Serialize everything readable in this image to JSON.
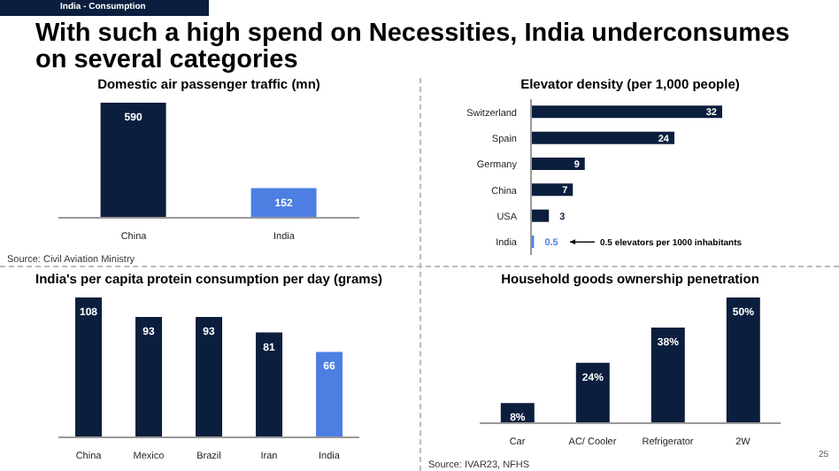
{
  "chart_data": [
    {
      "type": "other",
      "title": "With such a high spend on Necessities, India underconsumes on several categories",
      "annotations": [
        "India - Consumption",
        "25"
      ]
    },
    {
      "type": "bar",
      "title": "Domestic air passenger traffic (mn)",
      "categories": [
        "China",
        "India"
      ],
      "values": [
        590,
        152
      ],
      "colors": [
        "#0c1e3e",
        "#4d7fe3"
      ],
      "data_labels": true,
      "annotations": [
        "Source: Civil Aviation Ministry"
      ]
    },
    {
      "type": "bar",
      "orientation": "horizontal",
      "title": "Elevator density (per 1,000 people)",
      "categories": [
        "Switzerland",
        "Spain",
        "Germany",
        "China",
        "USA",
        "India"
      ],
      "values": [
        32,
        24,
        9,
        7,
        3,
        0.5
      ],
      "colors": [
        "#0c1e3e",
        "#0c1e3e",
        "#0c1e3e",
        "#0c1e3e",
        "#0c1e3e",
        "#4d7fe3"
      ],
      "data_labels": true,
      "annotations": [
        "0.5 elevators per 1000 inhabitants"
      ]
    },
    {
      "type": "bar",
      "title": "India's per capita protein consumption per day (grams)",
      "categories": [
        "China",
        "Mexico",
        "Brazil",
        "Iran",
        "India"
      ],
      "values": [
        108,
        93,
        93,
        81,
        66
      ],
      "colors": [
        "#0c1e3e",
        "#0c1e3e",
        "#0c1e3e",
        "#0c1e3e",
        "#4d7fe3"
      ],
      "data_labels": true
    },
    {
      "type": "bar",
      "title": "Household goods ownership penetration",
      "categories": [
        "Car",
        "AC/ Cooler",
        "Refrigerator",
        "2W"
      ],
      "values": [
        8,
        24,
        38,
        50
      ],
      "colors": [
        "#0c1e3e",
        "#0c1e3e",
        "#0c1e3e",
        "#0c1e3e"
      ],
      "value_labels": [
        "8%",
        "24%",
        "38%",
        "50%"
      ],
      "annotations": [
        "Source: IVAR23, NFHS"
      ]
    }
  ]
}
